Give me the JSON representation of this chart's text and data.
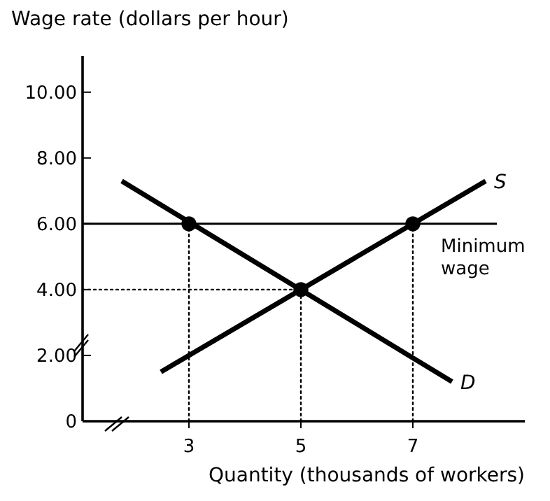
{
  "chart_data": {
    "type": "line",
    "ylabel": "Wage rate (dollars per hour)",
    "xlabel": "Quantity (thousands of workers)",
    "xlim": [
      1.1,
      9.0
    ],
    "xticks": [
      3,
      5,
      7
    ],
    "ylim": [
      0,
      11.1
    ],
    "yticks": [
      0,
      {
        "value": 2,
        "label": "2.00"
      },
      {
        "value": 4,
        "label": "4.00"
      },
      {
        "value": 6,
        "label": "6.00"
      },
      {
        "value": 8,
        "label": "8.00"
      },
      {
        "value": 10,
        "label": "10.00"
      }
    ],
    "grid": false,
    "line_style": "solid",
    "marker": "none",
    "series": [
      {
        "name": "D",
        "color": "#000000",
        "x": [
          1.8,
          7.7
        ],
        "values": [
          7.3,
          1.2
        ]
      },
      {
        "name": "S",
        "color": "#000000",
        "x": [
          2.5,
          8.3
        ],
        "values": [
          1.5,
          7.3
        ]
      },
      {
        "color": "#000000",
        "x": [
          3,
          3
        ],
        "values": [
          0,
          6
        ],
        "line_style": "dotted"
      },
      {
        "color": "#000000",
        "x": [
          5,
          5
        ],
        "values": [
          0,
          4
        ],
        "line_style": "dotted"
      },
      {
        "color": "#000000",
        "x": [
          7,
          7
        ],
        "values": [
          0,
          6
        ],
        "line_style": "dotted"
      },
      {
        "color": "#000000",
        "x": [
          1.1,
          5
        ],
        "values": [
          4,
          4
        ],
        "line_style": "dotted"
      },
      {
        "type": "scatter",
        "color": "#000000",
        "x": [
          3,
          5,
          7
        ],
        "values": [
          6,
          4,
          6
        ],
        "marker": "circle"
      }
    ],
    "ref_lines": [
      {
        "axis": "y",
        "value": 6,
        "label": "Minimum wage",
        "color": "#000000"
      }
    ]
  }
}
